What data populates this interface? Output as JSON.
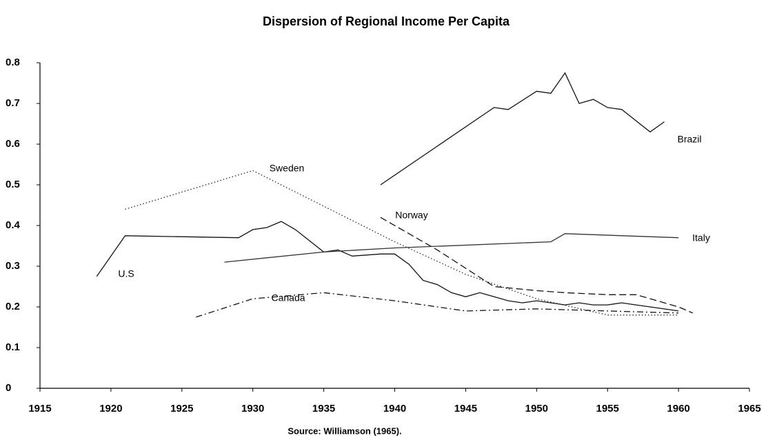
{
  "chart_data": {
    "type": "line",
    "title": "Dispersion of Regional Income Per Capita",
    "source": "Source: Williamson (1965).",
    "xlim": [
      1915,
      1965
    ],
    "xticks": [
      1915,
      1920,
      1925,
      1930,
      1935,
      1940,
      1945,
      1950,
      1955,
      1960,
      1965
    ],
    "ylim": [
      0,
      0.8
    ],
    "yticks": [
      0,
      0.1,
      0.2,
      0.3,
      0.4,
      0.5,
      0.6,
      0.7,
      0.8
    ],
    "series": [
      {
        "name": "U.S",
        "color": "#111111",
        "style": "solid",
        "x": [
          1919,
          1921,
          1929,
          1930,
          1931,
          1932,
          1933,
          1935,
          1936,
          1937,
          1939,
          1940,
          1941,
          1942,
          1943,
          1944,
          1945,
          1946,
          1947,
          1948,
          1949,
          1950,
          1951,
          1952,
          1953,
          1954,
          1955,
          1956,
          1957,
          1958,
          1959,
          1960
        ],
        "values": [
          0.275,
          0.375,
          0.37,
          0.39,
          0.395,
          0.41,
          0.39,
          0.335,
          0.34,
          0.325,
          0.33,
          0.33,
          0.305,
          0.265,
          0.255,
          0.235,
          0.225,
          0.235,
          0.225,
          0.215,
          0.21,
          0.215,
          0.21,
          0.205,
          0.21,
          0.205,
          0.205,
          0.21,
          0.205,
          0.2,
          0.195,
          0.19
        ]
      },
      {
        "name": "Sweden",
        "color": "#222222",
        "style": "dotted",
        "x": [
          1921,
          1930,
          1940,
          1945,
          1950,
          1955,
          1960
        ],
        "values": [
          0.44,
          0.535,
          0.36,
          0.28,
          0.22,
          0.18,
          0.18
        ]
      },
      {
        "name": "Brazil",
        "color": "#111111",
        "style": "solid",
        "x": [
          1939,
          1947,
          1948,
          1950,
          1951,
          1952,
          1953,
          1954,
          1955,
          1956,
          1958,
          1959
        ],
        "values": [
          0.5,
          0.69,
          0.685,
          0.73,
          0.725,
          0.775,
          0.7,
          0.71,
          0.69,
          0.685,
          0.63,
          0.655
        ]
      },
      {
        "name": "Norway",
        "color": "#111111",
        "style": "dashed",
        "x": [
          1939,
          1943,
          1947,
          1950,
          1952,
          1955,
          1957,
          1960,
          1961
        ],
        "values": [
          0.42,
          0.34,
          0.25,
          0.24,
          0.235,
          0.23,
          0.23,
          0.2,
          0.185
        ]
      },
      {
        "name": "Italy",
        "color": "#333333",
        "style": "solid",
        "x": [
          1928,
          1935,
          1940,
          1951,
          1952,
          1960
        ],
        "values": [
          0.31,
          0.335,
          0.345,
          0.36,
          0.38,
          0.37
        ]
      },
      {
        "name": "Canada",
        "color": "#111111",
        "style": "dashdot",
        "x": [
          1926,
          1930,
          1935,
          1940,
          1945,
          1950,
          1955,
          1960
        ],
        "values": [
          0.175,
          0.22,
          0.235,
          0.215,
          0.19,
          0.195,
          0.19,
          0.185
        ]
      }
    ]
  }
}
